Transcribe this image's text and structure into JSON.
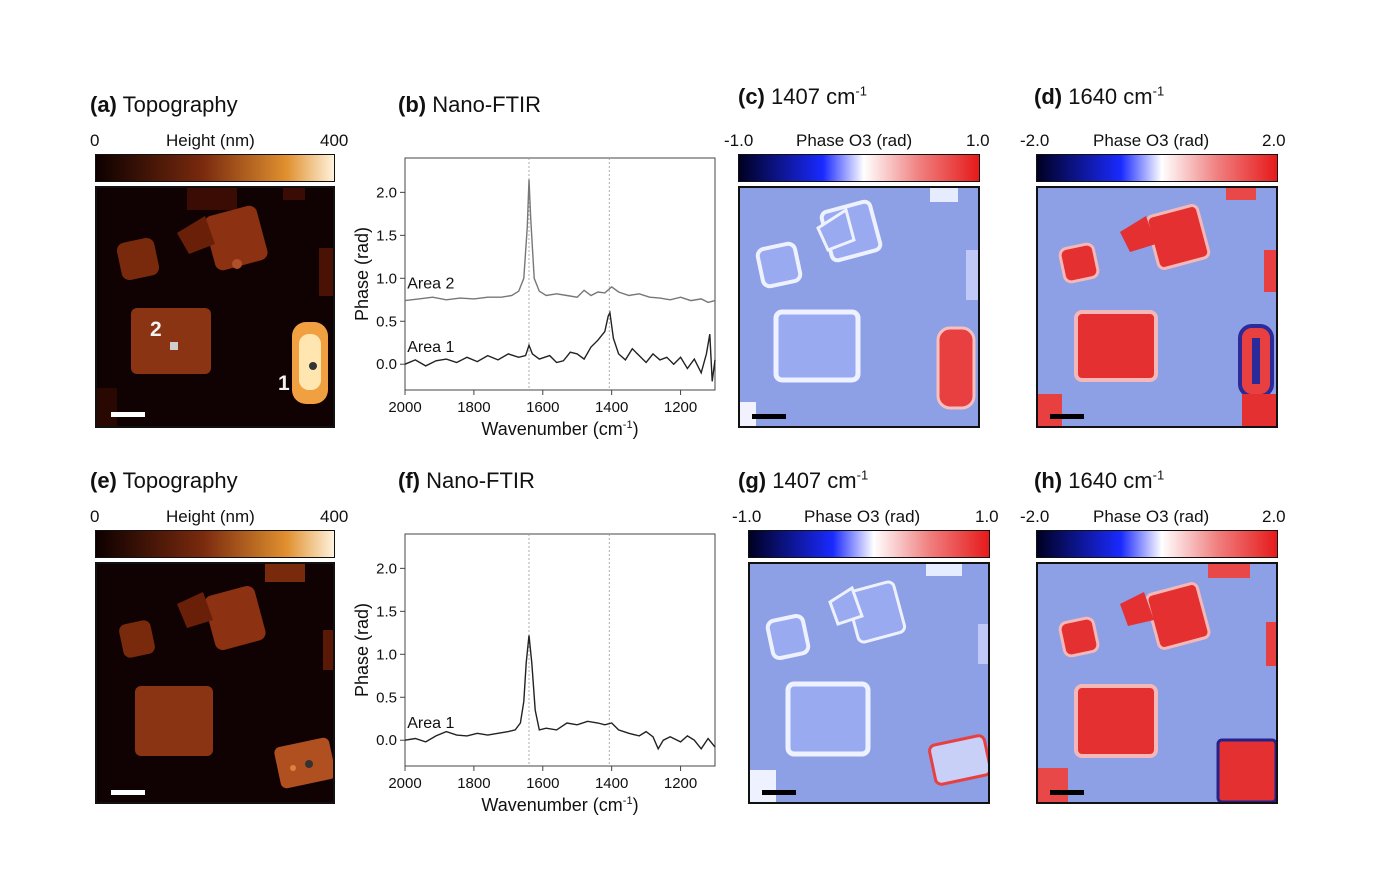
{
  "panels": {
    "a": {
      "letter": "(a)",
      "title": "Topography",
      "cb_min": "0",
      "cb_label": "Height (nm)",
      "cb_max": "400",
      "marker1": "1",
      "marker2": "2"
    },
    "b": {
      "letter": "(b)",
      "title": "Nano-FTIR"
    },
    "c": {
      "letter": "(c)",
      "title": "1407 cm",
      "sup": "-1",
      "cb_min": "-1.0",
      "cb_label": "Phase O3 (rad)",
      "cb_max": "1.0"
    },
    "d": {
      "letter": "(d)",
      "title": "1640 cm",
      "sup": "-1",
      "cb_min": "-2.0",
      "cb_label": "Phase O3 (rad)",
      "cb_max": "2.0"
    },
    "e": {
      "letter": "(e)",
      "title": "Topography",
      "cb_min": "0",
      "cb_label": "Height (nm)",
      "cb_max": "400"
    },
    "f": {
      "letter": "(f)",
      "title": "Nano-FTIR"
    },
    "g": {
      "letter": "(g)",
      "title": "1407 cm",
      "sup": "-1",
      "cb_min": "-1.0",
      "cb_label": "Phase O3 (rad)",
      "cb_max": "1.0"
    },
    "h": {
      "letter": "(h)",
      "title": "1640 cm",
      "sup": "-1",
      "cb_min": "-2.0",
      "cb_label": "Phase O3 (rad)",
      "cb_max": "2.0"
    }
  },
  "colors": {
    "topo_low": "#0d0000",
    "topo_mid": "#7a2a0e",
    "topo_high": "#fff2dc",
    "phase_low": "#000022",
    "phase_mid": "#ffffff",
    "phase_high": "#e61a1a",
    "background_phase": "#8c9ee6"
  },
  "chart_data": [
    {
      "type": "line",
      "panel": "b",
      "xlabel": "Wavenumber (cm",
      "xlabel_sup": "-1",
      "xlabel_end": ")",
      "ylabel": "Phase (rad)",
      "xlim": [
        2000,
        1100
      ],
      "ylim": [
        -0.3,
        2.4
      ],
      "xticks": [
        2000,
        1800,
        1600,
        1400,
        1200
      ],
      "yticks": [
        "0.0",
        "0.5",
        "1.0",
        "1.5",
        "2.0"
      ],
      "vlines": [
        1640,
        1407
      ],
      "series": [
        {
          "name": "Area 2",
          "x": [
            2000,
            1960,
            1920,
            1880,
            1840,
            1800,
            1760,
            1720,
            1690,
            1670,
            1655,
            1645,
            1640,
            1635,
            1625,
            1610,
            1590,
            1560,
            1530,
            1500,
            1480,
            1460,
            1440,
            1420,
            1400,
            1380,
            1350,
            1320,
            1290,
            1260,
            1230,
            1200,
            1170,
            1140,
            1120,
            1100
          ],
          "y": [
            0.74,
            0.76,
            0.78,
            0.75,
            0.77,
            0.76,
            0.78,
            0.78,
            0.8,
            0.85,
            1.0,
            1.6,
            2.15,
            1.7,
            1.0,
            0.85,
            0.8,
            0.82,
            0.8,
            0.78,
            0.86,
            0.8,
            0.84,
            0.83,
            0.9,
            0.84,
            0.8,
            0.82,
            0.78,
            0.77,
            0.75,
            0.78,
            0.74,
            0.76,
            0.72,
            0.74
          ]
        },
        {
          "name": "Area 1",
          "x": [
            2000,
            1970,
            1940,
            1910,
            1880,
            1850,
            1820,
            1790,
            1760,
            1730,
            1700,
            1670,
            1650,
            1640,
            1630,
            1610,
            1580,
            1560,
            1540,
            1520,
            1500,
            1480,
            1460,
            1440,
            1420,
            1410,
            1405,
            1395,
            1380,
            1360,
            1340,
            1320,
            1300,
            1280,
            1260,
            1240,
            1220,
            1200,
            1180,
            1160,
            1140,
            1125,
            1115,
            1108,
            1100
          ],
          "y": [
            0.0,
            0.05,
            -0.02,
            0.04,
            0.06,
            0.02,
            0.08,
            0.03,
            0.1,
            0.05,
            0.12,
            0.08,
            0.1,
            0.22,
            0.12,
            0.06,
            0.1,
            0.02,
            0.04,
            0.14,
            0.12,
            0.06,
            0.2,
            0.28,
            0.38,
            0.56,
            0.6,
            0.3,
            0.12,
            0.05,
            0.18,
            0.1,
            0.02,
            0.12,
            0.05,
            0.08,
            0.0,
            0.08,
            -0.05,
            0.06,
            -0.1,
            0.12,
            0.35,
            -0.2,
            0.05
          ]
        }
      ],
      "annotations": [
        "Area 2",
        "Area 1"
      ]
    },
    {
      "type": "line",
      "panel": "f",
      "xlabel": "Wavenumber (cm",
      "xlabel_sup": "-1",
      "xlabel_end": ")",
      "ylabel": "Phase (rad)",
      "xlim": [
        2000,
        1100
      ],
      "ylim": [
        -0.3,
        2.4
      ],
      "xticks": [
        2000,
        1800,
        1600,
        1400,
        1200
      ],
      "yticks": [
        "0.0",
        "0.5",
        "1.0",
        "1.5",
        "2.0"
      ],
      "vlines": [
        1640,
        1407
      ],
      "series": [
        {
          "name": "Area 1",
          "x": [
            2000,
            1970,
            1940,
            1910,
            1880,
            1850,
            1820,
            1790,
            1760,
            1730,
            1700,
            1680,
            1665,
            1655,
            1648,
            1640,
            1632,
            1622,
            1610,
            1590,
            1560,
            1530,
            1500,
            1470,
            1440,
            1420,
            1400,
            1380,
            1350,
            1320,
            1300,
            1280,
            1265,
            1250,
            1230,
            1200,
            1180,
            1160,
            1140,
            1120,
            1100
          ],
          "y": [
            0.0,
            0.02,
            -0.02,
            0.05,
            0.1,
            0.06,
            0.05,
            0.08,
            0.06,
            0.08,
            0.1,
            0.12,
            0.2,
            0.45,
            0.9,
            1.22,
            0.9,
            0.35,
            0.12,
            0.14,
            0.12,
            0.2,
            0.18,
            0.22,
            0.2,
            0.18,
            0.2,
            0.12,
            0.08,
            0.05,
            0.1,
            0.04,
            -0.1,
            0.0,
            0.04,
            -0.02,
            0.05,
            0.0,
            -0.1,
            0.02,
            -0.08
          ]
        }
      ],
      "annotations": [
        "Area 1"
      ]
    }
  ]
}
